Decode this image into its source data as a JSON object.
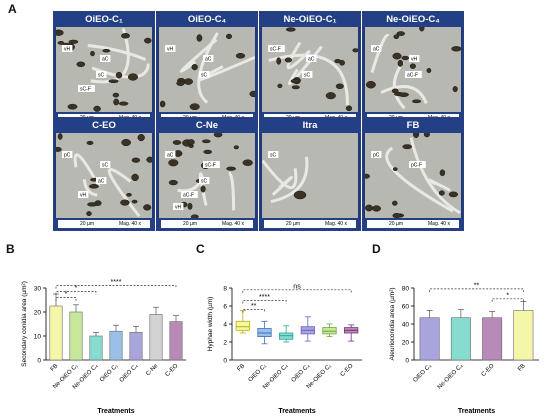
{
  "panel_a": {
    "letter": "A",
    "images": [
      {
        "title": "OiEO-C₁",
        "labels": [
          "vH",
          "aC",
          "sC",
          "sC-F"
        ],
        "scale": "20 µm",
        "mag": "Mag. 40 x"
      },
      {
        "title": "OiEO-C₄",
        "labels": [
          "vH",
          "aC",
          "sC"
        ],
        "scale": "20 µm",
        "mag": "Mag. 40 x"
      },
      {
        "title": "Ne-OiEO-C₁",
        "labels": [
          "sC-F",
          "aC",
          "sC"
        ],
        "scale": "20 µm",
        "mag": "Mag. 40 x"
      },
      {
        "title": "Ne-OiEO-C₄",
        "labels": [
          "aC",
          "vH",
          "aC-F"
        ],
        "scale": "20 µm",
        "mag": "Mag. 40 x"
      },
      {
        "title": "C-EO",
        "labels": [
          "pC",
          "sC",
          "aC",
          "vH"
        ],
        "scale": "20 µm",
        "mag": "Mag. 40 x"
      },
      {
        "title": "C-Ne",
        "labels": [
          "aC",
          "sC-F",
          "sC",
          "aC-F",
          "vH"
        ],
        "scale": "20 µm",
        "mag": "Mag. 40 x"
      },
      {
        "title": "Itra",
        "labels": [
          "sC"
        ],
        "scale": "20 µm",
        "mag": "Mag. 40 x"
      },
      {
        "title": "FB",
        "labels": [
          "pC",
          "pC-F"
        ],
        "scale": "20 µm",
        "mag": "Mag. 40 x"
      }
    ]
  },
  "chart_data": [
    {
      "letter": "B",
      "type": "bar",
      "ylabel": "Secondary conidia area (µm²)",
      "xlabel": "Treatments",
      "ylim": [
        0,
        30
      ],
      "yticks": [
        0,
        10,
        20,
        30
      ],
      "categories": [
        "FB",
        "Ne-OiEO C₁",
        "Ne-OiEO C₄",
        "OiEO C₁",
        "OiEO C₄",
        "C-Ne",
        "C-EO"
      ],
      "values": [
        22.5,
        20,
        10,
        12,
        11.5,
        19,
        16
      ],
      "errors": [
        5,
        3,
        1.5,
        2.5,
        2.5,
        3,
        2.5
      ],
      "colors": [
        "#f4f7a8",
        "#c7e89a",
        "#86dccf",
        "#9bbfe6",
        "#a9a4dc",
        "#d3d3d3",
        "#b88ab8"
      ],
      "significance": [
        {
          "from": 0,
          "to": 1,
          "level": 26,
          "label": "*"
        },
        {
          "from": 0,
          "to": 2,
          "level": 28.5,
          "label": "*"
        },
        {
          "from": 0,
          "to": 6,
          "level": 31,
          "label": "****"
        }
      ]
    },
    {
      "letter": "C",
      "type": "box",
      "ylabel": "Hyphae width (µm)",
      "xlabel": "Treatments",
      "ylim": [
        0,
        8
      ],
      "yticks": [
        0,
        2,
        4,
        6,
        8
      ],
      "categories": [
        "FB",
        "OiEO C₁",
        "Ne-OiEO C₄",
        "OiEO C₄",
        "Ne-OiEO C₁",
        "C-EO"
      ],
      "boxes": [
        {
          "min": 3.0,
          "q1": 3.3,
          "median": 3.7,
          "q3": 4.3,
          "max": 5.5
        },
        {
          "min": 1.8,
          "q1": 2.6,
          "median": 3.0,
          "q3": 3.5,
          "max": 4.3
        },
        {
          "min": 2.0,
          "q1": 2.3,
          "median": 2.7,
          "q3": 3.0,
          "max": 3.8
        },
        {
          "min": 2.1,
          "q1": 2.9,
          "median": 3.3,
          "q3": 3.7,
          "max": 4.8
        },
        {
          "min": 2.6,
          "q1": 2.9,
          "median": 3.2,
          "q3": 3.6,
          "max": 4.0
        },
        {
          "min": 2.1,
          "q1": 3.0,
          "median": 3.3,
          "q3": 3.6,
          "max": 3.9
        }
      ],
      "colors": [
        "#f4f7a8",
        "#9bbfe6",
        "#86dccf",
        "#a9a4dc",
        "#c7e89a",
        "#b88ab8"
      ],
      "edge_colors": [
        "#b8b200",
        "#3d6fbf",
        "#2aa596",
        "#6a5fbf",
        "#6aa83a",
        "#7a2f7a"
      ],
      "significance": [
        {
          "from": 0,
          "to": 1,
          "level": 5.6,
          "label": "**"
        },
        {
          "from": 0,
          "to": 2,
          "level": 6.6,
          "label": "****"
        },
        {
          "from": 0,
          "to": 5,
          "level": 7.8,
          "label": "ns"
        }
      ]
    },
    {
      "letter": "D",
      "type": "bar",
      "ylabel": "Aleurioconidia area (µm²)",
      "xlabel": "Treatments",
      "ylim": [
        0,
        80
      ],
      "yticks": [
        0,
        20,
        40,
        60,
        80
      ],
      "categories": [
        "OiEO C₄",
        "Ne-OiEO C₄",
        "C-EO",
        "FB"
      ],
      "values": [
        47,
        47,
        47,
        55
      ],
      "errors": [
        8,
        9,
        7,
        10
      ],
      "colors": [
        "#a9a4dc",
        "#86dccf",
        "#b88ab8",
        "#f4f7a8"
      ],
      "significance": [
        {
          "from": 2,
          "to": 3,
          "level": 68,
          "label": "*"
        },
        {
          "from": 0,
          "to": 3,
          "level": 79,
          "label": "**"
        }
      ]
    }
  ]
}
